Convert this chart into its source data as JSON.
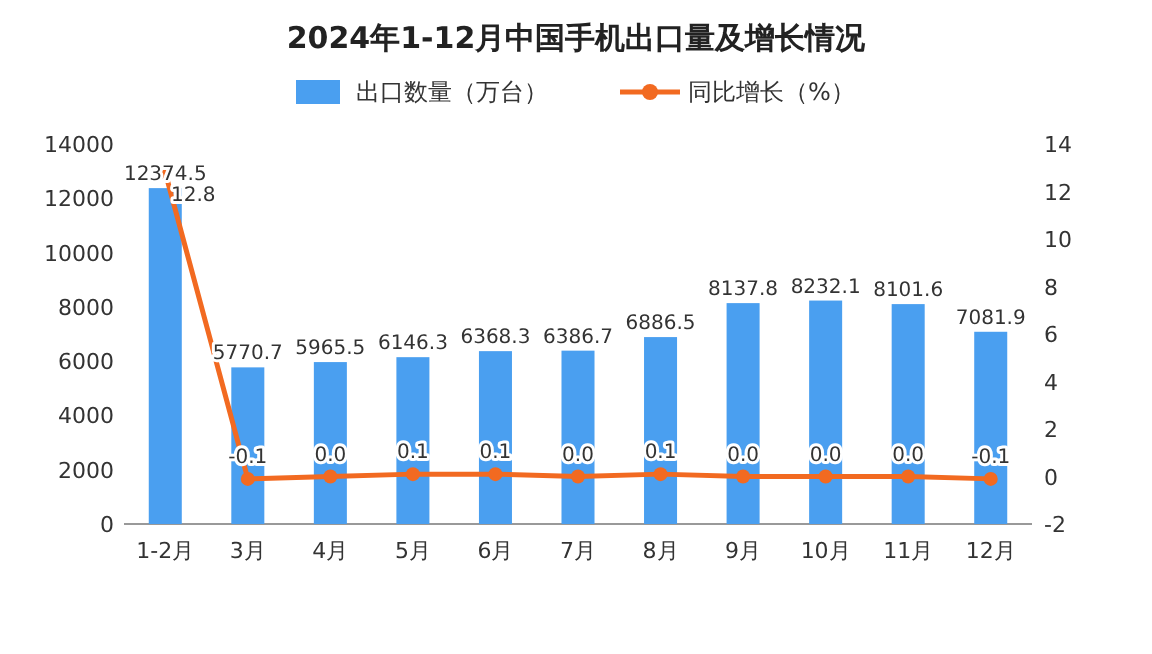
{
  "chart_data": {
    "type": "bar",
    "title": "2024年1-12月中国手机出口量及增长情况",
    "categories": [
      "1-2月",
      "3月",
      "4月",
      "5月",
      "6月",
      "7月",
      "8月",
      "9月",
      "10月",
      "11月",
      "12月"
    ],
    "series": [
      {
        "name": "出口数量（万台）",
        "color": "#4a9ff0",
        "values": [
          12374.5,
          5770.7,
          5965.5,
          6146.3,
          6368.3,
          6386.7,
          6886.5,
          8137.8,
          8232.1,
          8101.6,
          7081.9
        ]
      },
      {
        "name": "同比增长（%）",
        "type": "line",
        "axis": "y2",
        "color": "#f26a21",
        "marker": "circle",
        "values": [
          12.8,
          -0.1,
          0.0,
          0.1,
          0.1,
          0.0,
          0.1,
          0.0,
          0.0,
          0.0,
          -0.1
        ],
        "value_labels": [
          "12.8",
          "-0.1",
          "0.0",
          "0.1",
          "0.1",
          "0.0",
          "0.1",
          "0.0",
          "0.0",
          "0.0",
          "-0.1"
        ]
      }
    ],
    "ylim": [
      0,
      14000
    ],
    "yticks": [
      0,
      2000,
      4000,
      6000,
      8000,
      10000,
      12000,
      14000
    ],
    "y2lim": [
      -2,
      14
    ],
    "y2ticks": [
      -2,
      0,
      2,
      4,
      6,
      8,
      10,
      12,
      14
    ],
    "data_labels": true,
    "legend": "top",
    "grid": false
  }
}
